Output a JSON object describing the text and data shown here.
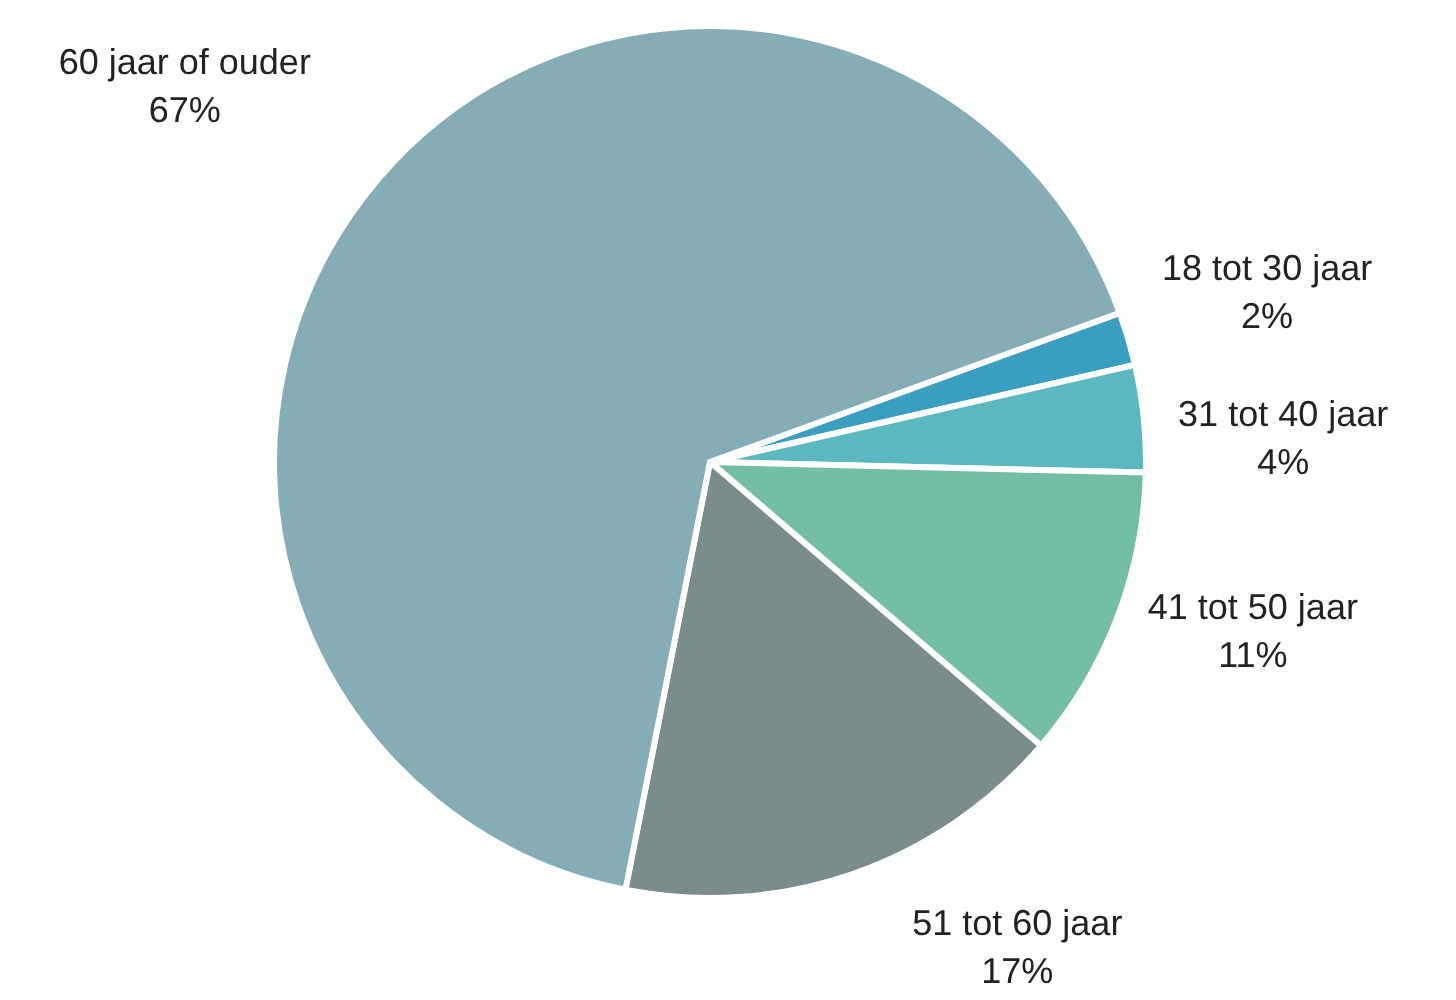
{
  "chart_data": {
    "type": "pie",
    "categories": [
      "18 tot 30 jaar",
      "31 tot 40 jaar",
      "41 tot 50 jaar",
      "51 tot 60 jaar",
      "60 jaar of ouder"
    ],
    "values": [
      2,
      4,
      11,
      17,
      67
    ],
    "colors": [
      "#3a9ec1",
      "#5bb8c0",
      "#74bea6",
      "#7b8c8c",
      "#85adb6"
    ],
    "value_labels": [
      "2%",
      "4%",
      "11%",
      "17%",
      "67%"
    ]
  }
}
